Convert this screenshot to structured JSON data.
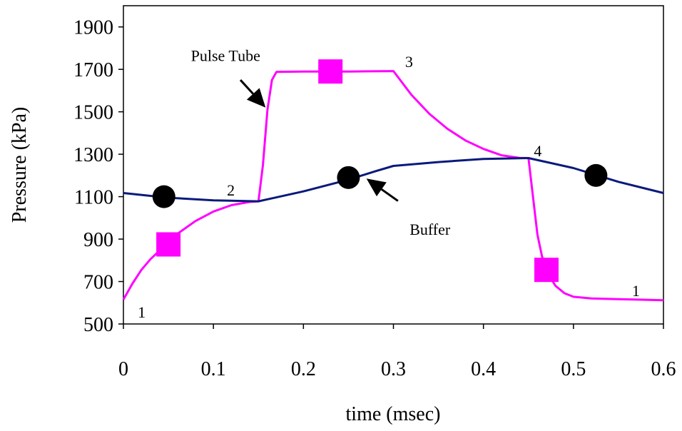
{
  "chart_data": {
    "type": "line",
    "title": "",
    "xlabel": "time (msec)",
    "ylabel": "Pressure (kPa)",
    "xlim": [
      0,
      0.6
    ],
    "ylim": [
      500,
      2000
    ],
    "xticks": [
      0,
      0.1,
      0.2,
      0.3,
      0.4,
      0.5,
      0.6
    ],
    "xtick_labels": [
      "0",
      "0.1",
      "0.2",
      "0.3",
      "0.4",
      "0.5",
      "0.6"
    ],
    "yticks": [
      500,
      700,
      900,
      1100,
      1300,
      1500,
      1700,
      1900
    ],
    "ytick_labels": [
      "500",
      "700",
      "900",
      "1100",
      "1300",
      "1500",
      "1700",
      "1900"
    ],
    "grid": false,
    "series": [
      {
        "name": "Pulse Tube",
        "color": "#ff00ff",
        "marker": "square",
        "points": [
          [
            0,
            615
          ],
          [
            0.01,
            690
          ],
          [
            0.02,
            755
          ],
          [
            0.03,
            805
          ],
          [
            0.04,
            845
          ],
          [
            0.05,
            880
          ],
          [
            0.06,
            925
          ],
          [
            0.08,
            985
          ],
          [
            0.1,
            1030
          ],
          [
            0.12,
            1060
          ],
          [
            0.14,
            1075
          ],
          [
            0.15,
            1078
          ],
          [
            0.155,
            1250
          ],
          [
            0.16,
            1510
          ],
          [
            0.165,
            1650
          ],
          [
            0.17,
            1688
          ],
          [
            0.2,
            1690
          ],
          [
            0.25,
            1690
          ],
          [
            0.3,
            1692
          ],
          [
            0.32,
            1580
          ],
          [
            0.34,
            1490
          ],
          [
            0.36,
            1420
          ],
          [
            0.38,
            1365
          ],
          [
            0.4,
            1325
          ],
          [
            0.42,
            1295
          ],
          [
            0.44,
            1283
          ],
          [
            0.45,
            1282
          ],
          [
            0.455,
            1100
          ],
          [
            0.46,
            920
          ],
          [
            0.465,
            820
          ],
          [
            0.47,
            750
          ],
          [
            0.48,
            680
          ],
          [
            0.49,
            645
          ],
          [
            0.5,
            628
          ],
          [
            0.52,
            620
          ],
          [
            0.55,
            617
          ],
          [
            0.58,
            614
          ],
          [
            0.6,
            612
          ]
        ],
        "marker_points": [
          [
            0.05,
            875
          ],
          [
            0.23,
            1690
          ],
          [
            0.47,
            755
          ]
        ]
      },
      {
        "name": "Buffer",
        "color": "#0a1a7a",
        "marker": "circle",
        "points": [
          [
            0,
            1117
          ],
          [
            0.05,
            1095
          ],
          [
            0.1,
            1083
          ],
          [
            0.15,
            1078
          ],
          [
            0.2,
            1125
          ],
          [
            0.25,
            1180
          ],
          [
            0.28,
            1220
          ],
          [
            0.3,
            1245
          ],
          [
            0.35,
            1263
          ],
          [
            0.4,
            1278
          ],
          [
            0.45,
            1282
          ],
          [
            0.5,
            1235
          ],
          [
            0.55,
            1170
          ],
          [
            0.6,
            1117
          ]
        ],
        "marker_points": [
          [
            0.045,
            1100
          ],
          [
            0.25,
            1190
          ],
          [
            0.525,
            1200
          ]
        ]
      }
    ],
    "annotations": [
      {
        "text": "Pulse Tube",
        "x": 0.075,
        "y": 1740
      },
      {
        "text": "Buffer",
        "x": 0.318,
        "y": 920
      },
      {
        "text": "1",
        "x": 0.016,
        "y": 530
      },
      {
        "text": "2",
        "x": 0.115,
        "y": 1105
      },
      {
        "text": "3",
        "x": 0.313,
        "y": 1710
      },
      {
        "text": "4",
        "x": 0.456,
        "y": 1290
      },
      {
        "text": "1",
        "x": 0.565,
        "y": 632
      }
    ],
    "arrows": [
      {
        "label": "Pulse Tube",
        "from": [
          0.13,
          1650
        ],
        "to": [
          0.158,
          1520
        ]
      },
      {
        "label": "Buffer",
        "from": [
          0.305,
          1080
        ],
        "to": [
          0.27,
          1185
        ]
      }
    ]
  }
}
